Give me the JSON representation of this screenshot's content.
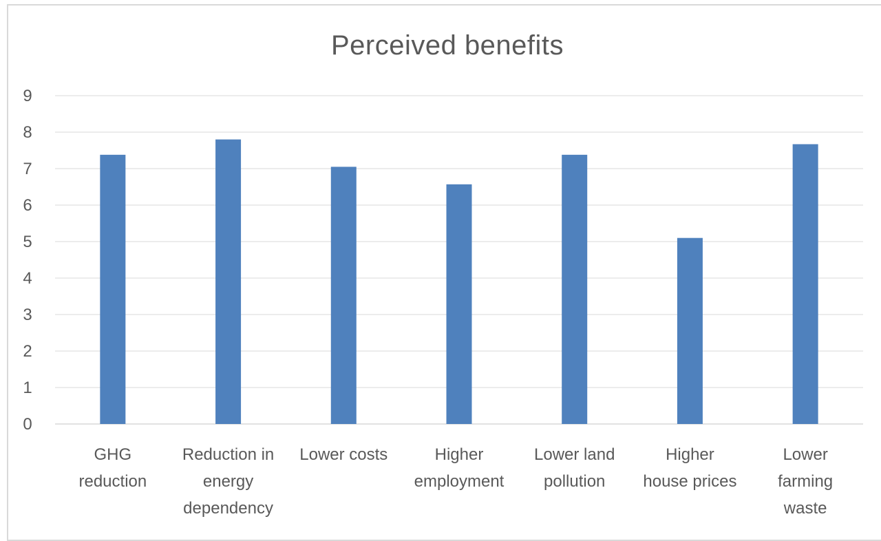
{
  "chart_data": {
    "type": "bar",
    "title": "Perceived benefits",
    "categories": [
      "GHG reduction",
      "Reduction in energy dependency",
      "Lower costs",
      "Higher employment",
      "Lower land pollution",
      "Higher house prices",
      "Lower farming waste"
    ],
    "category_label_lines": [
      [
        "GHG",
        "reduction"
      ],
      [
        "Reduction in",
        "energy",
        "dependency"
      ],
      [
        "Lower costs"
      ],
      [
        "Higher",
        "employment"
      ],
      [
        "Lower land",
        "pollution"
      ],
      [
        "Higher",
        "house prices"
      ],
      [
        "Lower",
        "farming",
        "waste"
      ]
    ],
    "values": [
      7.38,
      7.8,
      7.05,
      6.57,
      7.38,
      5.1,
      7.67
    ],
    "ylim": [
      0,
      9
    ],
    "yticks": [
      0,
      1,
      2,
      3,
      4,
      5,
      6,
      7,
      8,
      9
    ],
    "xlabel": "",
    "ylabel": "",
    "grid": true,
    "legend": "none",
    "bar_color": "#4f81bd",
    "grid_color": "#d9d9d9"
  }
}
